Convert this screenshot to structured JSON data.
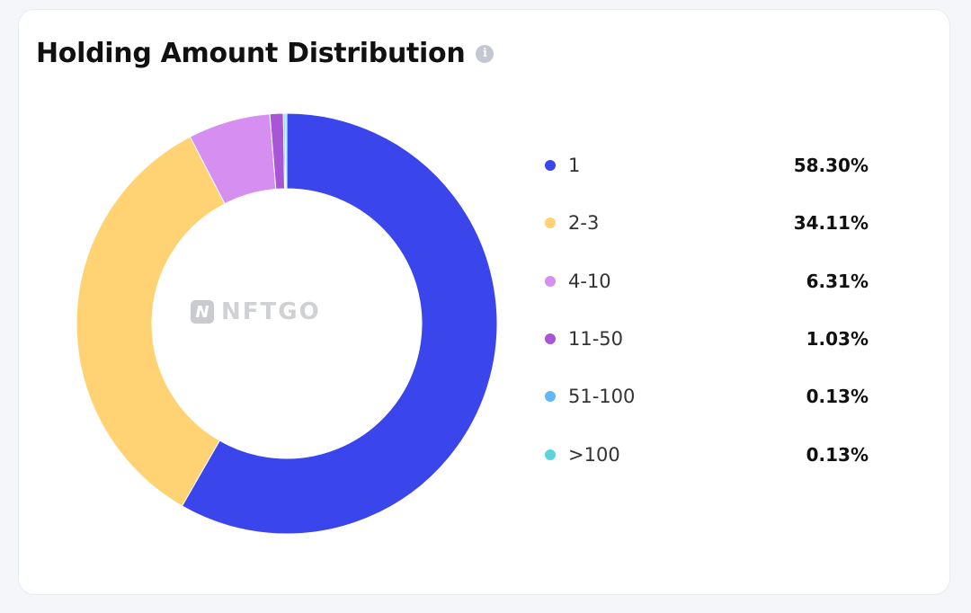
{
  "card": {
    "title": "Holding Amount Distribution",
    "info_icon": "info-icon",
    "watermark": "NFTGO",
    "watermark_logo": "N"
  },
  "chart_data": {
    "type": "pie",
    "variant": "donut",
    "categories": [
      "1",
      "2-3",
      "4-10",
      "11-50",
      "51-100",
      ">100"
    ],
    "values": [
      58.3,
      34.11,
      6.31,
      1.03,
      0.13,
      0.13
    ],
    "labels": [
      "58.30%",
      "34.11%",
      "6.31%",
      "1.03%",
      "0.13%",
      "0.13%"
    ],
    "colors": [
      "#3a45ec",
      "#ffd374",
      "#d68ff0",
      "#a855d6",
      "#62b8f0",
      "#5cd4dc"
    ],
    "title": "Holding Amount Distribution",
    "legend": "right"
  }
}
